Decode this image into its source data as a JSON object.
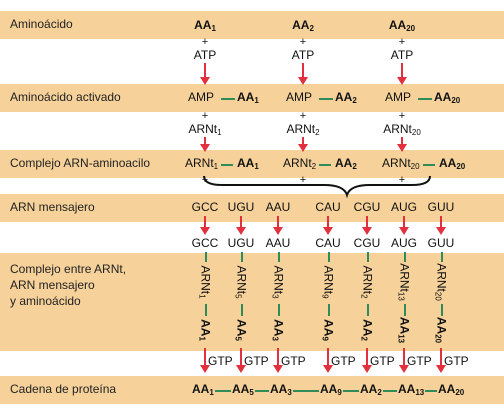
{
  "rows": {
    "aminoacido": "Aminoácido",
    "activado": "Aminoácido activado",
    "complejo_arn": "Complejo ARN-aminoacilo",
    "mensajero": "ARN mensajero",
    "complejo_entre": [
      "Complejo entre ARNt,",
      "ARN mensajero",
      "y aminoácido"
    ],
    "cadena": "Cadena de proteína"
  },
  "symbols": {
    "plus": "+",
    "dash": "—",
    "atp": "ATP",
    "amp": "AMP",
    "aa": "AA",
    "arnt": "ARNt",
    "gtp": "GTP"
  },
  "activation_columns": [
    {
      "aa_sub": "1"
    },
    {
      "aa_sub": "2"
    },
    {
      "aa_sub": "20"
    }
  ],
  "codons": [
    {
      "codon": "GCC",
      "trna_sub": "1",
      "aa_sub": "1"
    },
    {
      "codon": "UGU",
      "trna_sub": "5",
      "aa_sub": "5"
    },
    {
      "codon": "AAU",
      "trna_sub": "3",
      "aa_sub": "3"
    },
    {
      "codon": "CAU",
      "trna_sub": "9",
      "aa_sub": "9"
    },
    {
      "codon": "CGU",
      "trna_sub": "2",
      "aa_sub": "2"
    },
    {
      "codon": "AUG",
      "trna_sub": "13",
      "aa_sub": "13"
    },
    {
      "codon": "GUU",
      "trna_sub": "20",
      "aa_sub": "20"
    }
  ],
  "colors": {
    "band": "#f6d29a",
    "arrow": "#e2303f",
    "bond": "#2f8b57"
  }
}
